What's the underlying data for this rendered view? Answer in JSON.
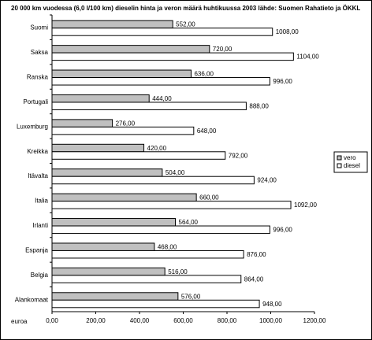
{
  "chart_data": {
    "type": "bar",
    "orientation": "horizontal",
    "title": "20 000 km vuodessa (6,0 l/100 km) dieselin hinta ja veron määrä huhtikuussa 2003 lähde: Suomen Rahatieto ja ÖKKL",
    "xlabel": "euroa",
    "ylabel": "",
    "xlim": [
      0,
      1200
    ],
    "x_ticks": [
      "0,00",
      "200,00",
      "400,00",
      "600,00",
      "800,00",
      "1000,00",
      "1200,00"
    ],
    "grid": false,
    "legend_position": "right",
    "categories": [
      "Suomi",
      "Saksa",
      "Ranska",
      "Portugali",
      "Luxemburg",
      "Kreikka",
      "Itävalta",
      "Italia",
      "Irlanti",
      "Espanja",
      "Belgia",
      "Alankomaat"
    ],
    "series": [
      {
        "name": "vero",
        "color": "#c0c0c0",
        "values": [
          552,
          720,
          636,
          444,
          276,
          420,
          504,
          660,
          564,
          468,
          516,
          576
        ],
        "labels": [
          "552,00",
          "720,00",
          "636,00",
          "444,00",
          "276,00",
          "420,00",
          "504,00",
          "660,00",
          "564,00",
          "468,00",
          "516,00",
          "576,00"
        ]
      },
      {
        "name": "diesel",
        "color": "#ffffff",
        "values": [
          1008,
          1104,
          996,
          888,
          648,
          792,
          924,
          1092,
          996,
          876,
          864,
          948
        ],
        "labels": [
          "1008,00",
          "1104,00",
          "996,00",
          "888,00",
          "648,00",
          "792,00",
          "924,00",
          "1092,00",
          "996,00",
          "876,00",
          "864,00",
          "948,00"
        ]
      }
    ]
  }
}
